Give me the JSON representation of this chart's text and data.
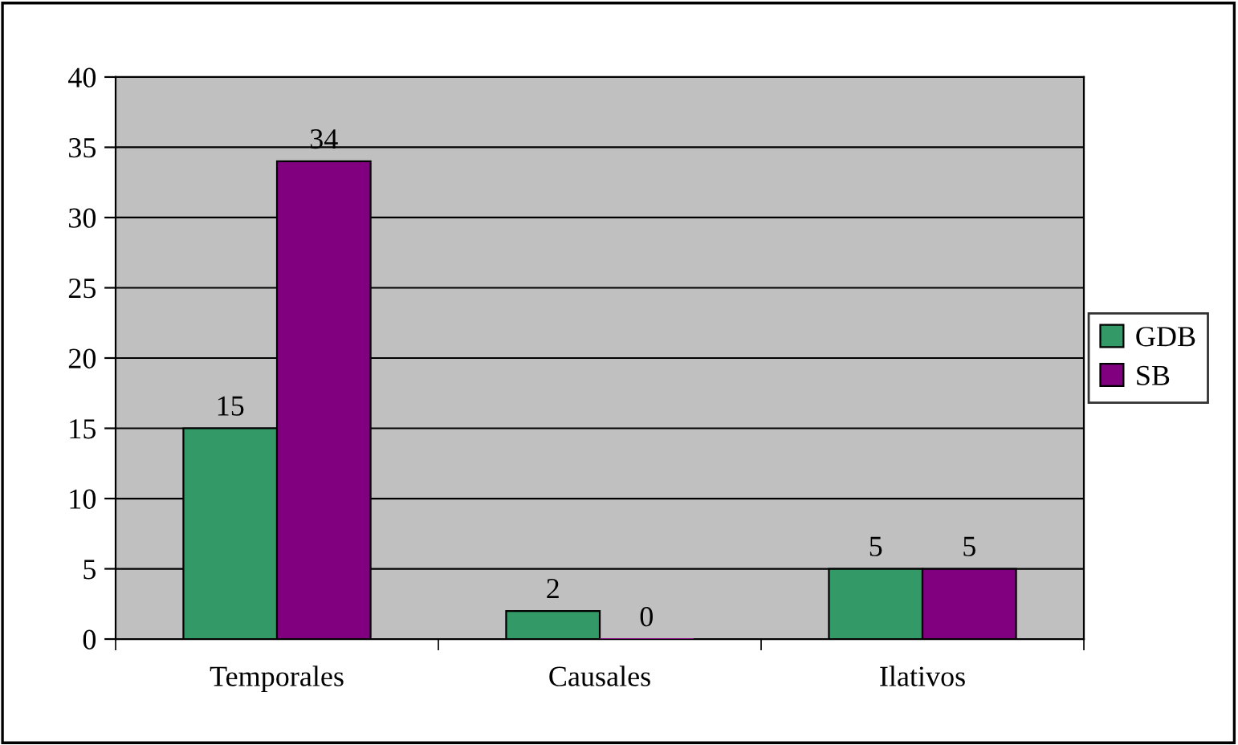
{
  "chart_data": {
    "type": "bar",
    "categories": [
      "Temporales",
      "Causales",
      "Ilativos"
    ],
    "series": [
      {
        "name": "GDB",
        "color": "#339966",
        "values": [
          15,
          2,
          5
        ]
      },
      {
        "name": "SB",
        "color": "#800080",
        "values": [
          34,
          0,
          5
        ]
      }
    ],
    "ylim": [
      0,
      40
    ],
    "yticks": [
      0,
      5,
      10,
      15,
      20,
      25,
      30,
      35,
      40
    ],
    "grid": "y",
    "legend": "right",
    "data_labels": true
  }
}
